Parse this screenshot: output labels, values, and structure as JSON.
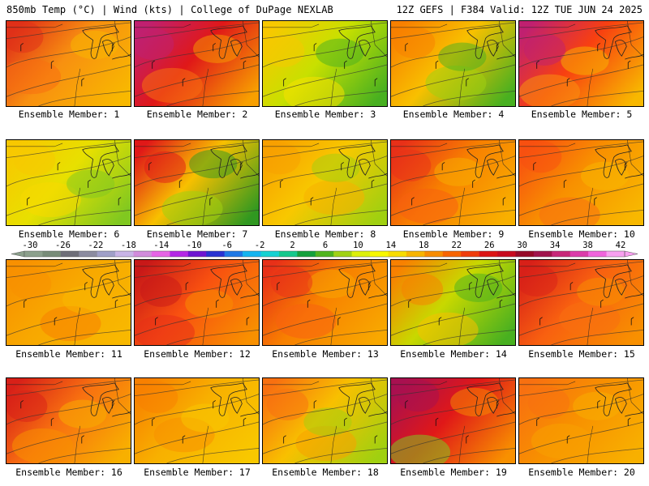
{
  "header": {
    "title_left": "850mb Temp (°C) | Wind (kts) | College of DuPage NEXLAB",
    "title_right": "12Z GEFS | F384 Valid: 12Z TUE JUN 24 2025"
  },
  "members": [
    {
      "label": "Ensemble Member: 1",
      "hot": "#e03018",
      "mid": "#f89010",
      "cool": "#f8b800",
      "extra": "#f87010"
    },
    {
      "label": "Ensemble Member: 2",
      "hot": "#c02070",
      "mid": "#e01818",
      "cool": "#f8a000",
      "extra": "#f87010"
    },
    {
      "label": "Ensemble Member: 3",
      "hot": "#f8c800",
      "mid": "#c8e000",
      "cool": "#48b020",
      "extra": "#f8e000"
    },
    {
      "label": "Ensemble Member: 4",
      "hot": "#f88000",
      "mid": "#f8c000",
      "cool": "#48b020",
      "extra": "#a0d010"
    },
    {
      "label": "Ensemble Member: 5",
      "hot": "#c02070",
      "mid": "#f84010",
      "cool": "#f8b800",
      "extra": "#f89010"
    },
    {
      "label": "Ensemble Member: 6",
      "hot": "#f8c800",
      "mid": "#e8e000",
      "cool": "#80c820",
      "extra": "#f8d800"
    },
    {
      "label": "Ensemble Member: 7",
      "hot": "#e01818",
      "mid": "#f8c000",
      "cool": "#309820",
      "extra": "#a0d010"
    },
    {
      "label": "Ensemble Member: 8",
      "hot": "#f8a000",
      "mid": "#f8c800",
      "cool": "#a0d010",
      "extra": "#f8b000"
    },
    {
      "label": "Ensemble Member: 9",
      "hot": "#e83018",
      "mid": "#f88000",
      "cool": "#f8b000",
      "extra": "#f86010"
    },
    {
      "label": "Ensemble Member: 10",
      "hot": "#f85010",
      "mid": "#f89000",
      "cool": "#f8b800",
      "extra": "#f87010"
    },
    {
      "label": "Ensemble Member: 11",
      "hot": "#f89000",
      "mid": "#f8a800",
      "cool": "#f8b800",
      "extra": "#f88000"
    },
    {
      "label": "Ensemble Member: 12",
      "hot": "#c81818",
      "mid": "#f85010",
      "cool": "#f89000",
      "extra": "#e83018"
    },
    {
      "label": "Ensemble Member: 13",
      "hot": "#e83018",
      "mid": "#f88000",
      "cool": "#f8a800",
      "extra": "#f86010"
    },
    {
      "label": "Ensemble Member: 14",
      "hot": "#f88000",
      "mid": "#c8d800",
      "cool": "#48b020",
      "extra": "#f8c000"
    },
    {
      "label": "Ensemble Member: 15",
      "hot": "#d82018",
      "mid": "#f86010",
      "cool": "#f89000",
      "extra": "#f87010"
    },
    {
      "label": "Ensemble Member: 16",
      "hot": "#d82018",
      "mid": "#f87010",
      "cool": "#f8b000",
      "extra": "#f89000"
    },
    {
      "label": "Ensemble Member: 17",
      "hot": "#f88000",
      "mid": "#f8b000",
      "cool": "#f8c800",
      "extra": "#f89000"
    },
    {
      "label": "Ensemble Member: 18",
      "hot": "#f87010",
      "mid": "#f8c000",
      "cool": "#a0d010",
      "extra": "#f8a000"
    },
    {
      "label": "Ensemble Member: 19",
      "hot": "#a81050",
      "mid": "#e01818",
      "cool": "#f89000",
      "extra": "#80c820"
    },
    {
      "label": "Ensemble Member: 20",
      "hot": "#f87010",
      "mid": "#f89000",
      "cool": "#f8b000",
      "extra": "#f8a000"
    }
  ],
  "colorbar": {
    "ticks": [
      "-30",
      "-26",
      "-22",
      "-18",
      "-14",
      "-10",
      "-6",
      "-2",
      "2",
      "6",
      "10",
      "14",
      "18",
      "22",
      "26",
      "30",
      "34",
      "38",
      "42"
    ],
    "colors": [
      "#8ca08c",
      "#788c78",
      "#6e6e78",
      "#8c8ca0",
      "#a0a0c8",
      "#c8b4e6",
      "#d28cdc",
      "#e664e6",
      "#b428e6",
      "#6e14d2",
      "#2832d2",
      "#1e78e6",
      "#14b4f0",
      "#14d2d2",
      "#14c88c",
      "#14a03c",
      "#50b41e",
      "#a0d214",
      "#dcf00a",
      "#f8f800",
      "#f8dc00",
      "#f8b400",
      "#f88c00",
      "#f86400",
      "#f03c0a",
      "#dc1414",
      "#c80a1e",
      "#960a28",
      "#a0144c",
      "#c82878",
      "#dc3caa",
      "#f064dc",
      "#f8a0f0"
    ]
  }
}
